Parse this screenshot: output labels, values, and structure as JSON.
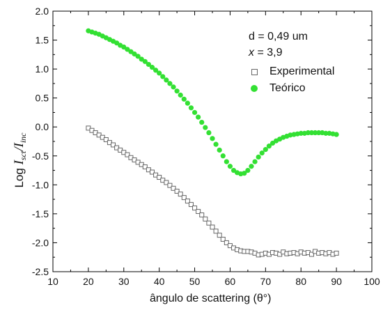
{
  "chart_data": {
    "type": "scatter",
    "xlabel": "ângulo de scattering (θ°)",
    "ylabel": {
      "prefix": "Log ",
      "i1": "I",
      "s1": "sct",
      "slash": "/",
      "i2": "I",
      "s2": "inc"
    },
    "xlim": [
      10,
      100
    ],
    "ylim": [
      -2.5,
      2.0
    ],
    "xticks": [
      10,
      20,
      30,
      40,
      50,
      60,
      70,
      80,
      90,
      100
    ],
    "yticks": [
      -2.5,
      -2.0,
      -1.5,
      -1.0,
      -0.5,
      0.0,
      0.5,
      1.0,
      1.5,
      2.0
    ],
    "xtick_labels": [
      "10",
      "20",
      "30",
      "40",
      "50",
      "60",
      "70",
      "80",
      "90",
      "100"
    ],
    "ytick_labels": [
      "-2.5",
      "-2.0",
      "-1.5",
      "-1.0",
      "-0.5",
      "0.0",
      "0.5",
      "1.0",
      "1.5",
      "2.0"
    ],
    "grid": false,
    "legend_position": "top-right",
    "annotations": {
      "d_text": "d = 0,49 um",
      "x_var": "x",
      "x_value": " = 3,9"
    },
    "series": [
      {
        "name": "Experimental",
        "marker": "open-square",
        "color": "#666666",
        "x": [
          20,
          21,
          22,
          23,
          24,
          25,
          26,
          27,
          28,
          29,
          30,
          31,
          32,
          33,
          34,
          35,
          36,
          37,
          38,
          39,
          40,
          41,
          42,
          43,
          44,
          45,
          46,
          47,
          48,
          49,
          50,
          51,
          52,
          53,
          54,
          55,
          56,
          57,
          58,
          59,
          60,
          61,
          62,
          63,
          64,
          65,
          66,
          67,
          68,
          69,
          70,
          71,
          72,
          73,
          74,
          75,
          76,
          77,
          78,
          79,
          80,
          81,
          82,
          83,
          84,
          85,
          86,
          87,
          88,
          89,
          90
        ],
        "y": [
          -0.02,
          -0.06,
          -0.1,
          -0.14,
          -0.18,
          -0.22,
          -0.27,
          -0.31,
          -0.36,
          -0.4,
          -0.44,
          -0.48,
          -0.53,
          -0.57,
          -0.61,
          -0.65,
          -0.69,
          -0.74,
          -0.78,
          -0.83,
          -0.87,
          -0.92,
          -0.96,
          -1.01,
          -1.06,
          -1.11,
          -1.16,
          -1.22,
          -1.28,
          -1.34,
          -1.4,
          -1.46,
          -1.52,
          -1.59,
          -1.66,
          -1.73,
          -1.8,
          -1.87,
          -1.94,
          -2.0,
          -2.05,
          -2.09,
          -2.12,
          -2.14,
          -2.15,
          -2.15,
          -2.16,
          -2.18,
          -2.21,
          -2.2,
          -2.18,
          -2.2,
          -2.17,
          -2.18,
          -2.2,
          -2.16,
          -2.19,
          -2.18,
          -2.17,
          -2.19,
          -2.16,
          -2.18,
          -2.17,
          -2.2,
          -2.15,
          -2.18,
          -2.17,
          -2.19,
          -2.17,
          -2.2,
          -2.18
        ]
      },
      {
        "name": "Teórico",
        "marker": "filled-circle",
        "color": "#33e033",
        "x": [
          20,
          21,
          22,
          23,
          24,
          25,
          26,
          27,
          28,
          29,
          30,
          31,
          32,
          33,
          34,
          35,
          36,
          37,
          38,
          39,
          40,
          41,
          42,
          43,
          44,
          45,
          46,
          47,
          48,
          49,
          50,
          51,
          52,
          53,
          54,
          55,
          56,
          57,
          58,
          59,
          60,
          61,
          62,
          63,
          64,
          65,
          66,
          67,
          68,
          69,
          70,
          71,
          72,
          73,
          74,
          75,
          76,
          77,
          78,
          79,
          80,
          81,
          82,
          83,
          84,
          85,
          86,
          87,
          88,
          89,
          90
        ],
        "y": [
          1.66,
          1.64,
          1.62,
          1.6,
          1.57,
          1.54,
          1.51,
          1.48,
          1.45,
          1.41,
          1.38,
          1.34,
          1.3,
          1.26,
          1.22,
          1.17,
          1.13,
          1.08,
          1.03,
          0.98,
          0.93,
          0.87,
          0.81,
          0.75,
          0.69,
          0.62,
          0.55,
          0.48,
          0.41,
          0.33,
          0.25,
          0.17,
          0.08,
          -0.01,
          -0.1,
          -0.2,
          -0.3,
          -0.4,
          -0.5,
          -0.6,
          -0.68,
          -0.75,
          -0.79,
          -0.81,
          -0.8,
          -0.75,
          -0.68,
          -0.6,
          -0.52,
          -0.45,
          -0.39,
          -0.33,
          -0.28,
          -0.24,
          -0.21,
          -0.18,
          -0.16,
          -0.14,
          -0.13,
          -0.12,
          -0.11,
          -0.11,
          -0.1,
          -0.1,
          -0.1,
          -0.1,
          -0.1,
          -0.11,
          -0.11,
          -0.12,
          -0.13
        ]
      }
    ]
  }
}
